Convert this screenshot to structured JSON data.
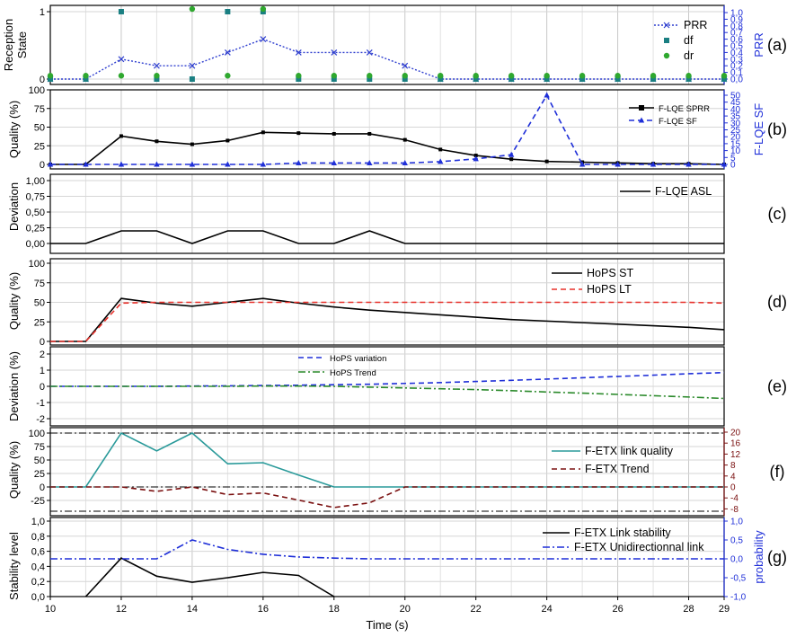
{
  "figure": {
    "xlabel": "Time (s)",
    "x_ticks": [
      10,
      12,
      14,
      16,
      18,
      20,
      22,
      24,
      26,
      28,
      29
    ]
  },
  "chart_data": [
    {
      "id": "a",
      "panel_label": "(a)",
      "type": "line",
      "ylabel": "Reception State",
      "ylabel_lines": [
        "Reception",
        "State"
      ],
      "ylim": [
        0,
        1
      ],
      "y_ticks": [
        "0",
        "1"
      ],
      "y_tick_values": [
        0,
        1
      ],
      "y2label": "PRR",
      "y2lim": [
        0,
        1
      ],
      "y2_ticks": [
        "0,0",
        "0,1",
        "0,2",
        "0,3",
        "0,4",
        "0,5",
        "0,6",
        "0,7",
        "0,8",
        "0,9",
        "1,0"
      ],
      "legend_position": "top-right",
      "series": [
        {
          "name": "PRR",
          "axis": "right",
          "style": "dotted",
          "marker": "x",
          "color": "#2f3fcf",
          "x": [
            10,
            11,
            12,
            13,
            14,
            15,
            16,
            17,
            18,
            19,
            20,
            21,
            22,
            23,
            24,
            25,
            26,
            27,
            28,
            29
          ],
          "values": [
            0.0,
            0.0,
            0.3,
            0.2,
            0.2,
            0.4,
            0.6,
            0.4,
            0.4,
            0.4,
            0.2,
            0.0,
            0.0,
            0.0,
            0.0,
            0.0,
            0.0,
            0.0,
            0.0,
            0.0
          ]
        },
        {
          "name": "df",
          "axis": "left",
          "style": "markers",
          "marker": "square",
          "color": "#1a7f82",
          "x": [
            10,
            11,
            12,
            13,
            14,
            15,
            16,
            17,
            18,
            19,
            20,
            21,
            22,
            23,
            24,
            25,
            26,
            27,
            28,
            29
          ],
          "values": [
            0,
            0,
            1,
            0,
            0,
            1,
            1,
            0,
            0,
            0,
            0,
            0,
            0,
            0,
            0,
            0,
            0,
            0,
            0,
            0
          ]
        },
        {
          "name": "dr",
          "axis": "left",
          "style": "markers",
          "marker": "circle",
          "color": "#2fa82f",
          "x": [
            10,
            11,
            12,
            13,
            14,
            15,
            16,
            17,
            18,
            19,
            20,
            21,
            22,
            23,
            24,
            25,
            26,
            27,
            28,
            29
          ],
          "values": [
            0.05,
            0.05,
            0.05,
            0.05,
            1.04,
            0.05,
            1.04,
            0.05,
            0.05,
            0.05,
            0.05,
            0.05,
            0.05,
            0.05,
            0.05,
            0.05,
            0.05,
            0.05,
            0.05,
            0.05
          ]
        }
      ]
    },
    {
      "id": "b",
      "panel_label": "(b)",
      "type": "line",
      "ylabel": "Quality (%)",
      "ylim": [
        0,
        100
      ],
      "y_ticks": [
        "0",
        "25",
        "50",
        "75",
        "100"
      ],
      "y_tick_values": [
        0,
        25,
        50,
        75,
        100
      ],
      "y2label": "F-LQE  SF",
      "y2lim": [
        -5,
        55
      ],
      "y2_ticks": [
        "0",
        "5",
        "10",
        "15",
        "20",
        "25",
        "30",
        "35",
        "40",
        "45",
        "50"
      ],
      "y2_tick_values": [
        0,
        5,
        10,
        15,
        20,
        25,
        30,
        35,
        40,
        45,
        50
      ],
      "legend_position": "top-right",
      "series": [
        {
          "name": "F-LQE SPRR",
          "axis": "left",
          "style": "solid",
          "marker": "square",
          "color": "#000000",
          "x": [
            10,
            11,
            12,
            13,
            14,
            15,
            16,
            17,
            18,
            19,
            20,
            21,
            22,
            23,
            24,
            25,
            26,
            27,
            28,
            29
          ],
          "values": [
            0,
            0,
            38,
            31,
            27,
            32,
            43,
            42,
            41,
            41,
            33,
            20,
            12,
            7,
            4,
            3,
            2,
            1,
            1,
            0
          ]
        },
        {
          "name": "F-LQE  SF",
          "axis": "right",
          "style": "dashed",
          "marker": "triangle",
          "color": "#1f2fd8",
          "x": [
            10,
            11,
            12,
            13,
            14,
            15,
            16,
            17,
            18,
            19,
            20,
            21,
            22,
            23,
            24,
            25,
            26,
            27,
            28,
            29
          ],
          "values": [
            0,
            0,
            0,
            0,
            0,
            0,
            0,
            1,
            1,
            1,
            1,
            2,
            4,
            7,
            50,
            0,
            0,
            0,
            0,
            0
          ]
        }
      ]
    },
    {
      "id": "c",
      "panel_label": "(c)",
      "type": "line",
      "ylabel": "Deviation",
      "ylim": [
        0,
        1
      ],
      "y_ticks": [
        "0,00",
        "0,25",
        "0,50",
        "0,75",
        "1,00"
      ],
      "y_tick_values": [
        0,
        0.25,
        0.5,
        0.75,
        1.0
      ],
      "legend_position": "top-right",
      "series": [
        {
          "name": "F-LQE  ASL",
          "axis": "left",
          "style": "solid",
          "color": "#000000",
          "x": [
            10,
            11,
            12,
            13,
            14,
            15,
            16,
            17,
            18,
            19,
            20,
            21,
            22,
            23,
            24,
            25,
            26,
            27,
            28,
            29
          ],
          "values": [
            0,
            0,
            0.2,
            0.2,
            0,
            0.2,
            0.2,
            0,
            0,
            0.2,
            0,
            0,
            0,
            0,
            0,
            0,
            0,
            0,
            0,
            0
          ]
        }
      ]
    },
    {
      "id": "d",
      "panel_label": "(d)",
      "type": "line",
      "ylabel": "Quality (%)",
      "ylim": [
        0,
        100
      ],
      "y_ticks": [
        "0",
        "25",
        "50",
        "75",
        "100"
      ],
      "y_tick_values": [
        0,
        25,
        50,
        75,
        100
      ],
      "legend_position": "top-right",
      "series": [
        {
          "name": "HoPS ST",
          "axis": "left",
          "style": "solid",
          "color": "#000000",
          "x": [
            10,
            11,
            12,
            13,
            14,
            15,
            16,
            17,
            18,
            19,
            20,
            21,
            22,
            23,
            24,
            25,
            26,
            27,
            28,
            29
          ],
          "values": [
            0,
            0,
            55,
            49,
            45,
            50,
            55,
            49,
            44,
            40,
            37,
            34,
            31,
            28,
            26,
            24,
            22,
            20,
            18,
            15
          ]
        },
        {
          "name": "HoPS LT",
          "axis": "left",
          "style": "dashed",
          "color": "#e8302a",
          "x": [
            10,
            11,
            12,
            13,
            14,
            15,
            16,
            17,
            18,
            19,
            20,
            21,
            22,
            23,
            24,
            25,
            26,
            27,
            28,
            29
          ],
          "values": [
            0,
            0,
            49,
            50,
            50,
            50,
            50,
            50,
            50,
            50,
            50,
            50,
            50,
            50,
            50,
            50,
            50,
            50,
            50,
            49
          ]
        }
      ]
    },
    {
      "id": "e",
      "panel_label": "(e)",
      "type": "line",
      "ylabel": "Deviation (%)",
      "ylim": [
        -2.5,
        2.5
      ],
      "y_ticks": [
        "-2",
        "-1",
        "0",
        "1",
        "2"
      ],
      "y_tick_values": [
        -2,
        -1,
        0,
        1,
        2
      ],
      "legend_position": "top-center",
      "series": [
        {
          "name": "HoPS variation",
          "axis": "left",
          "style": "dashed",
          "color": "#1f2fd8",
          "x": [
            10,
            11,
            12,
            13,
            14,
            15,
            16,
            17,
            18,
            19,
            20,
            21,
            22,
            23,
            24,
            25,
            26,
            27,
            28,
            29
          ],
          "values": [
            0,
            0,
            0,
            0,
            0.02,
            0.03,
            0.05,
            0.07,
            0.1,
            0.13,
            0.18,
            0.23,
            0.3,
            0.37,
            0.45,
            0.53,
            0.61,
            0.69,
            0.78,
            0.85
          ]
        },
        {
          "name": "HoPS Trend",
          "axis": "left",
          "style": "dashdot",
          "color": "#2b8a2b",
          "x": [
            10,
            11,
            12,
            13,
            14,
            15,
            16,
            17,
            18,
            19,
            20,
            21,
            22,
            23,
            24,
            25,
            26,
            27,
            28,
            29
          ],
          "values": [
            0,
            0,
            0,
            0,
            0,
            0,
            0.02,
            0.02,
            0,
            -0.05,
            -0.1,
            -0.15,
            -0.2,
            -0.27,
            -0.35,
            -0.42,
            -0.5,
            -0.58,
            -0.66,
            -0.75
          ]
        }
      ]
    },
    {
      "id": "f",
      "panel_label": "(f)",
      "type": "line",
      "ylabel": "Quality (%)",
      "ylim": [
        -45,
        105
      ],
      "y_ticks": [
        "-25",
        "0",
        "25",
        "50",
        "75",
        "100"
      ],
      "y_tick_values": [
        -25,
        0,
        25,
        50,
        75,
        100
      ],
      "y2lim": [
        -8,
        20
      ],
      "y2_ticks": [
        "-8",
        "-4",
        "0",
        "4",
        "8",
        "12",
        "16",
        "20"
      ],
      "y2_tick_values": [
        -8,
        -4,
        0,
        4,
        8,
        12,
        16,
        20
      ],
      "legend_position": "center-right",
      "series": [
        {
          "name": "F-ETX link quality",
          "axis": "left",
          "style": "solid",
          "color": "#2a9a9a",
          "x": [
            10,
            11,
            12,
            13,
            14,
            15,
            16,
            17,
            18,
            19,
            20,
            21,
            22,
            23,
            24,
            25,
            26,
            27,
            28,
            29
          ],
          "values": [
            0,
            0,
            100,
            67,
            100,
            43,
            45,
            22,
            0,
            0,
            0,
            0,
            0,
            0,
            0,
            0,
            0,
            0,
            0,
            0
          ]
        },
        {
          "name": "F-ETX Trend",
          "axis": "right",
          "style": "dashed",
          "color": "#7a1010",
          "x": [
            10,
            11,
            12,
            13,
            14,
            15,
            16,
            17,
            18,
            19,
            20,
            21,
            22,
            23,
            24,
            25,
            26,
            27,
            28,
            29
          ],
          "values": [
            0,
            0,
            0,
            -1.6,
            0,
            -2.8,
            -2.2,
            -4.8,
            -7.5,
            -5.8,
            0,
            0,
            0,
            0,
            0,
            0,
            0,
            0,
            0,
            0
          ]
        }
      ]
    },
    {
      "id": "g",
      "panel_label": "(g)",
      "type": "line",
      "ylabel": "Stability level",
      "ylim": [
        0,
        1.1
      ],
      "y_ticks": [
        "0,0",
        "0,2",
        "0,4",
        "0,6",
        "0,8",
        "1,0"
      ],
      "y_tick_values": [
        0,
        0.2,
        0.4,
        0.6,
        0.8,
        1.0
      ],
      "y2label": "probability",
      "y2lim": [
        -1,
        1
      ],
      "y2_ticks": [
        "-1,0",
        "-0,5",
        "0,0",
        "0,5",
        "1,0"
      ],
      "y2_tick_values": [
        -1,
        -0.5,
        0,
        0.5,
        1.0
      ],
      "legend_position": "top-right",
      "series": [
        {
          "name": "F-ETX Link stability",
          "axis": "left",
          "style": "solid",
          "color": "#000000",
          "x": [
            11,
            12,
            13,
            14,
            15,
            16,
            17,
            18
          ],
          "values": [
            0,
            0.51,
            0.27,
            0.19,
            0.25,
            0.32,
            0.28,
            0
          ]
        },
        {
          "name": "F-ETX Unidirectionnal link",
          "axis": "right",
          "style": "dashdot",
          "color": "#1f2fd8",
          "x": [
            10,
            11,
            12,
            13,
            14,
            15,
            16,
            17,
            18,
            19,
            20,
            21,
            22,
            23,
            24,
            25,
            26,
            27,
            28,
            29
          ],
          "values": [
            0,
            0,
            0,
            0,
            0.5,
            0.25,
            0.12,
            0.05,
            0.02,
            0,
            0,
            0,
            0,
            0,
            0,
            0,
            0,
            0,
            0,
            0
          ]
        }
      ]
    }
  ]
}
